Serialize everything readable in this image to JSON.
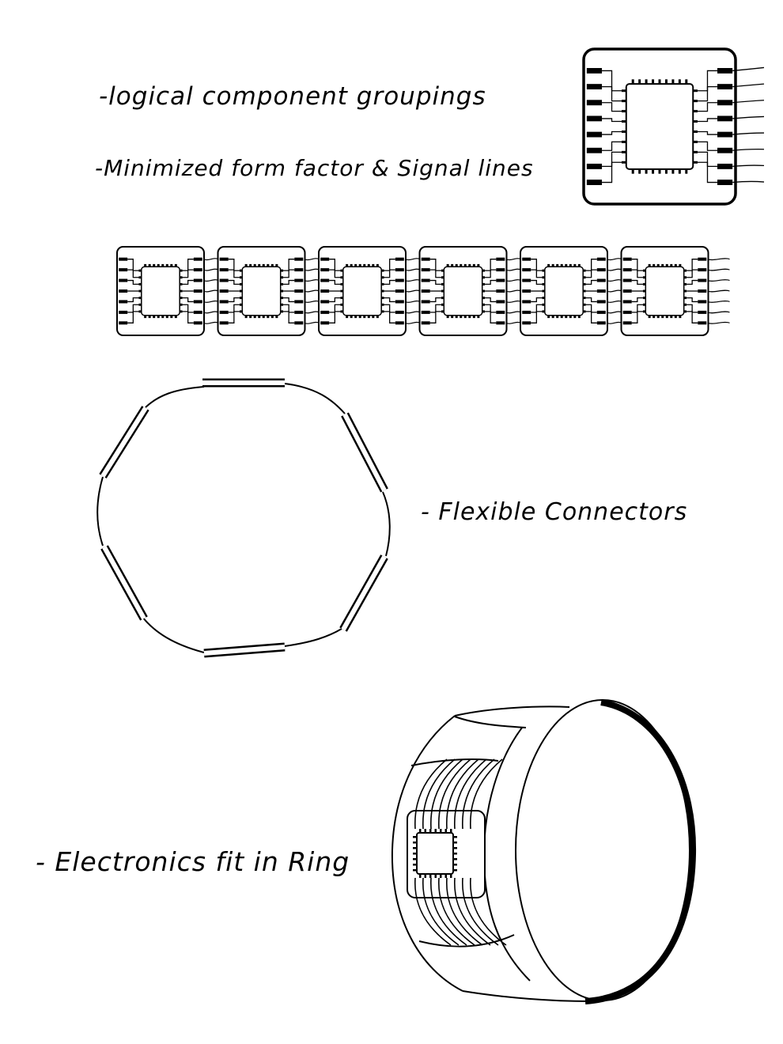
{
  "notes": {
    "grouping": "-logical component groupings",
    "form_factor": "-Minimized form factor & Signal lines",
    "connectors": "- Flexible Connectors",
    "ring": "- Electronics fit in Ring"
  },
  "colors": {
    "ink": "#000000",
    "paper": "#ffffff"
  },
  "module_strip": {
    "module_count": 6
  },
  "connector_ring": {
    "connector_count": 6
  }
}
